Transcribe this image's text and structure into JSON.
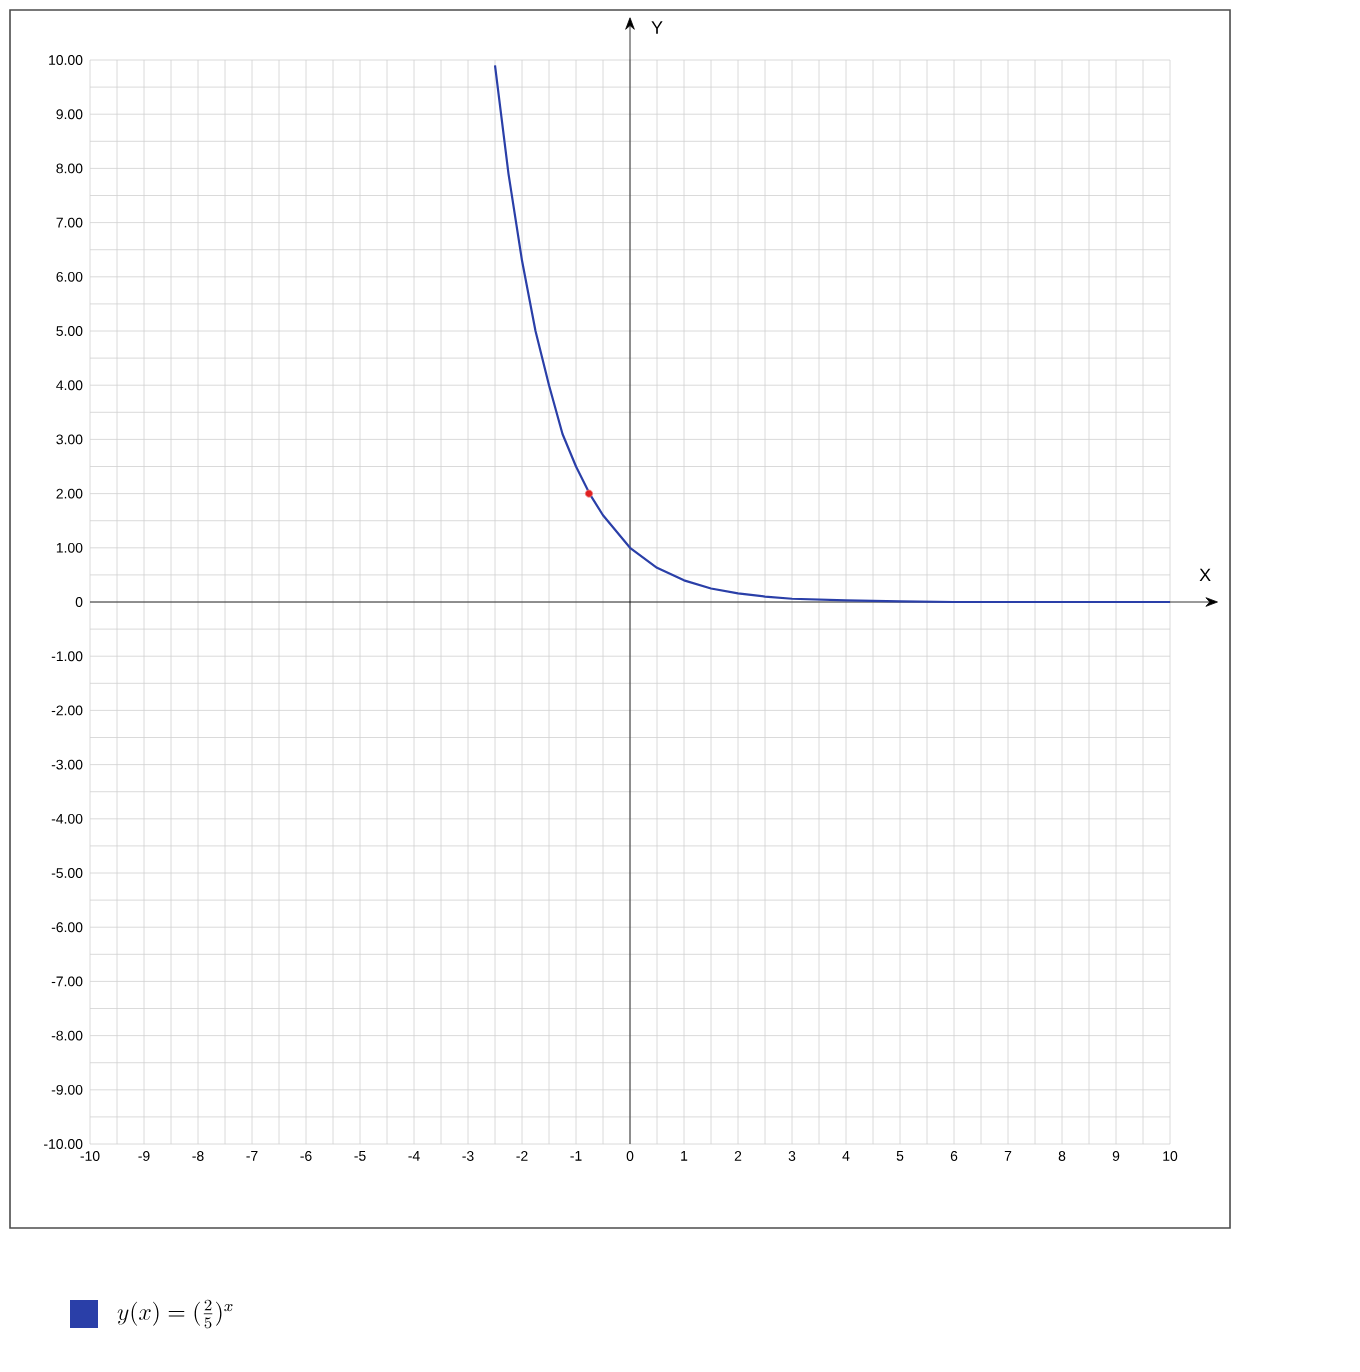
{
  "chart_data": {
    "type": "line",
    "xlabel": "X",
    "ylabel": "Y",
    "xlim": [
      -10,
      10
    ],
    "ylim": [
      -10,
      10
    ],
    "xticks": [
      -10,
      -9,
      -8,
      -7,
      -6,
      -5,
      -4,
      -3,
      -2,
      -1,
      0,
      1,
      2,
      3,
      4,
      5,
      6,
      7,
      8,
      9,
      10
    ],
    "yticks": [
      {
        "value": -10,
        "label": "-10.00"
      },
      {
        "value": -9,
        "label": "-9.00"
      },
      {
        "value": -8,
        "label": "-8.00"
      },
      {
        "value": -7,
        "label": "-7.00"
      },
      {
        "value": -6,
        "label": "-6.00"
      },
      {
        "value": -5,
        "label": "-5.00"
      },
      {
        "value": -4,
        "label": "-4.00"
      },
      {
        "value": -3,
        "label": "-3.00"
      },
      {
        "value": -2,
        "label": "-2.00"
      },
      {
        "value": -1,
        "label": "-1.00"
      },
      0,
      {
        "value": 1,
        "label": "1.00"
      },
      {
        "value": 2,
        "label": "2.00"
      },
      {
        "value": 3,
        "label": "3.00"
      },
      {
        "value": 4,
        "label": "4.00"
      },
      {
        "value": 5,
        "label": "5.00"
      },
      {
        "value": 6,
        "label": "6.00"
      },
      {
        "value": 7,
        "label": "7.00"
      },
      {
        "value": 8,
        "label": "8.00"
      },
      {
        "value": 9,
        "label": "9.00"
      },
      {
        "value": 10,
        "label": "10.00"
      }
    ],
    "grid": true,
    "legend": "bottom left",
    "series": [
      {
        "name": "y(x) = (\\frac{2}{5})^{x}",
        "color": "#2a3fa8",
        "x": [
          -2.5,
          -2.25,
          -2,
          -1.75,
          -1.5,
          -1.25,
          -1,
          -0.75,
          -0.5,
          -0.25,
          0,
          0.5,
          1,
          1.5,
          2,
          2.5,
          3,
          4,
          5,
          6,
          8,
          10
        ],
        "values": [
          9.9,
          7.9,
          6.3,
          5.0,
          4.0,
          3.1,
          2.5,
          2.0,
          1.6,
          1.3,
          1.0,
          0.63,
          0.4,
          0.25,
          0.16,
          0.1,
          0.06,
          0.03,
          0.01,
          0.0,
          0.0,
          0.0
        ]
      },
      {
        "type": "scatter",
        "color": "#e02020",
        "x": [
          -0.76
        ],
        "values": [
          2
        ]
      }
    ]
  }
}
